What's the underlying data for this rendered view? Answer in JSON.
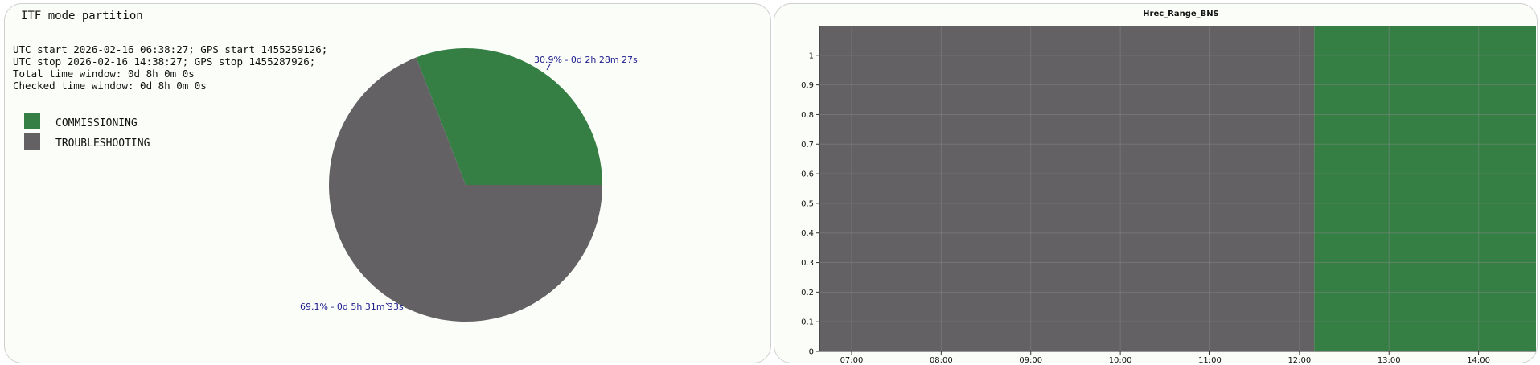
{
  "left_panel": {
    "title": "ITF mode partition",
    "info_lines": [
      "UTC start 2026-02-16 06:38:27; GPS start 1455259126;",
      "UTC stop 2026-02-16 14:38:27; GPS stop 1455287926;",
      "Total time window: 0d 8h 0m 0s",
      "Checked time window: 0d 8h 0m 0s"
    ],
    "legend": [
      {
        "label": "COMMISSIONING",
        "color": "#357f45"
      },
      {
        "label": "TROUBLESHOOTING",
        "color": "#636164"
      }
    ]
  },
  "chart_data": [
    {
      "type": "pie",
      "title": "ITF mode partition",
      "slices": [
        {
          "label": "COMMISSIONING",
          "value": 30.9,
          "text": "30.9% - 0d 2h 28m 27s",
          "color": "#357f45"
        },
        {
          "label": "TROUBLESHOOTING",
          "value": 69.1,
          "text": "69.1% - 0d 5h 31m 33s",
          "color": "#636164"
        }
      ],
      "label_color": "#1a1a8c"
    },
    {
      "type": "area",
      "title": "Hrec_Range_BNS",
      "x_ticks": [
        "07:00",
        "08:00",
        "09:00",
        "10:00",
        "11:00",
        "12:00",
        "13:00",
        "14:00"
      ],
      "y_ticks": [
        "0",
        "0.1",
        "0.2",
        "0.3",
        "0.4",
        "0.5",
        "0.6",
        "0.7",
        "0.8",
        "0.9",
        "1"
      ],
      "x_range_hours": [
        6.641,
        14.641
      ],
      "ylim": [
        0,
        1.1
      ],
      "grid": true,
      "segments": [
        {
          "label": "TROUBLESHOOTING",
          "start_hour": 6.641,
          "end_hour": 12.166,
          "value": 1.1,
          "color": "#636164"
        },
        {
          "label": "COMMISSIONING",
          "start_hour": 12.166,
          "end_hour": 14.641,
          "value": 1.1,
          "color": "#357f45"
        }
      ]
    }
  ]
}
